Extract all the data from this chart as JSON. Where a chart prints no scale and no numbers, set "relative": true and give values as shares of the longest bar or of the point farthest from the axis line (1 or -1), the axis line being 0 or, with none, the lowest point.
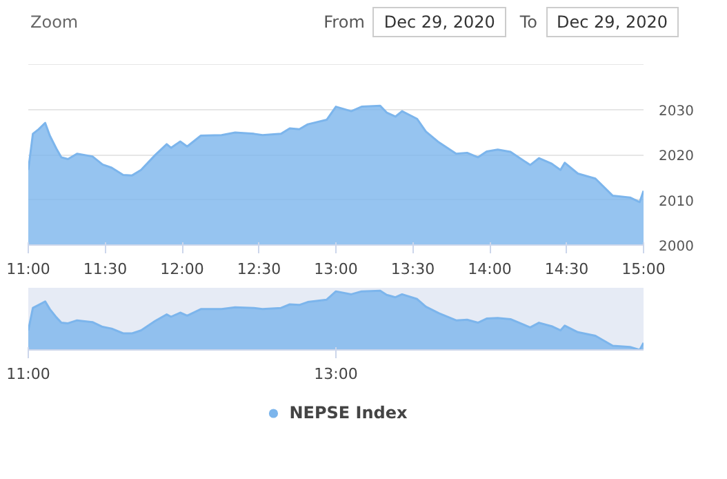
{
  "chart_data": [
    {
      "type": "area",
      "annotations": [
        "Zoom",
        "From",
        "Dec 29, 2020",
        "To",
        "Dec 29, 2020"
      ],
      "x": [
        11.0,
        11.03,
        11.067,
        11.11,
        11.14,
        11.183,
        11.215,
        11.258,
        11.317,
        11.417,
        11.483,
        11.542,
        11.617,
        11.675,
        11.733,
        11.825,
        11.9,
        11.928,
        11.988,
        12.033,
        12.122,
        12.257,
        12.345,
        12.467,
        12.523,
        12.643,
        12.7,
        12.762,
        12.817,
        12.94,
        13.0,
        13.1,
        13.167,
        13.288,
        13.33,
        13.387,
        13.43,
        13.528,
        13.585,
        13.67,
        13.782,
        13.853,
        13.923,
        13.98,
        14.052,
        14.135,
        14.263,
        14.32,
        14.403,
        14.46,
        14.488,
        14.573,
        14.687,
        14.8,
        14.912,
        14.975,
        15.0
      ],
      "series": [
        {
          "color": "#7cb5ec",
          "values": [
            2016.6,
            2024.6,
            2025.6,
            2027.0,
            2024.2,
            2021.3,
            2019.4,
            2019.0,
            2020.2,
            2019.6,
            2017.8,
            2017.1,
            2015.5,
            2015.4,
            2016.6,
            2019.9,
            2022.3,
            2021.5,
            2022.9,
            2021.8,
            2024.2,
            2024.3,
            2024.9,
            2024.6,
            2024.3,
            2024.6,
            2025.8,
            2025.6,
            2026.7,
            2027.7,
            2030.6,
            2029.6,
            2030.6,
            2030.8,
            2029.3,
            2028.4,
            2029.6,
            2027.9,
            2025.1,
            2022.7,
            2020.2,
            2020.4,
            2019.4,
            2020.7,
            2021.1,
            2020.6,
            2017.7,
            2019.2,
            2018.0,
            2016.6,
            2018.2,
            2015.8,
            2014.7,
            2010.9,
            2010.5,
            2009.5,
            2012.0
          ]
        }
      ],
      "xlim": [
        11,
        15
      ],
      "xticks": [
        {
          "value": 11,
          "label": "11:00"
        },
        {
          "value": 11.5,
          "label": "11:30"
        },
        {
          "value": 12,
          "label": "12:00"
        },
        {
          "value": 12.5,
          "label": "12:30"
        },
        {
          "value": 13,
          "label": "13:00"
        },
        {
          "value": 13.5,
          "label": "13:30"
        },
        {
          "value": 14,
          "label": "14:00"
        },
        {
          "value": 14.5,
          "label": "14:30"
        },
        {
          "value": 15,
          "label": "15:00"
        }
      ],
      "ylim": [
        2000,
        2040
      ],
      "yticks": [
        2000,
        2010,
        2020,
        2030
      ],
      "grid": "y"
    },
    {
      "type": "area",
      "relative": true,
      "tick_labels": "x",
      "legend": "bottom",
      "x": [
        11.0,
        11.03,
        11.067,
        11.11,
        11.14,
        11.183,
        11.215,
        11.258,
        11.317,
        11.417,
        11.483,
        11.542,
        11.617,
        11.675,
        11.733,
        11.825,
        11.9,
        11.928,
        11.988,
        12.033,
        12.122,
        12.257,
        12.345,
        12.467,
        12.523,
        12.643,
        12.7,
        12.762,
        12.817,
        12.94,
        13.0,
        13.1,
        13.167,
        13.288,
        13.33,
        13.387,
        13.43,
        13.528,
        13.585,
        13.67,
        13.782,
        13.853,
        13.923,
        13.98,
        14.052,
        14.135,
        14.263,
        14.32,
        14.403,
        14.46,
        14.488,
        14.573,
        14.687,
        14.8,
        14.912,
        14.975,
        15.0
      ],
      "series": [
        {
          "name": "NEPSE Index",
          "color": "#7cb5ec",
          "values": [
            0.33,
            0.71,
            0.76,
            0.82,
            0.69,
            0.55,
            0.46,
            0.45,
            0.5,
            0.47,
            0.39,
            0.36,
            0.28,
            0.28,
            0.33,
            0.49,
            0.6,
            0.56,
            0.63,
            0.58,
            0.69,
            0.69,
            0.72,
            0.71,
            0.69,
            0.71,
            0.77,
            0.76,
            0.81,
            0.85,
            0.99,
            0.94,
            0.99,
            1.0,
            0.93,
            0.89,
            0.94,
            0.86,
            0.73,
            0.62,
            0.5,
            0.51,
            0.46,
            0.53,
            0.54,
            0.52,
            0.38,
            0.46,
            0.4,
            0.33,
            0.41,
            0.3,
            0.24,
            0.07,
            0.05,
            0.0,
            0.12
          ]
        }
      ],
      "xlim": [
        11,
        15
      ],
      "xticks": [
        {
          "value": 11,
          "label": "11:00"
        },
        {
          "value": 13,
          "label": "13:00"
        }
      ]
    }
  ]
}
